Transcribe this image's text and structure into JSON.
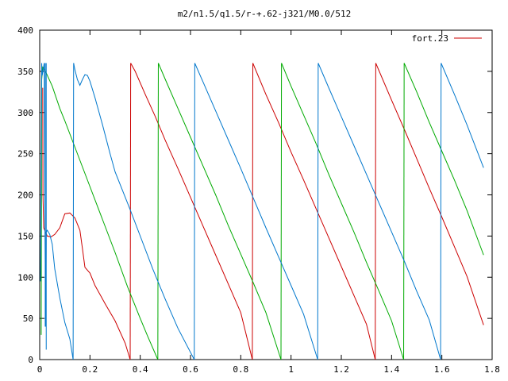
{
  "chart_data": {
    "type": "line",
    "title": "m2/n1.5/q1.5/r-+.62-j321/M0.0/512",
    "xlabel": "",
    "ylabel": "",
    "xlim": [
      0,
      1.8
    ],
    "ylim": [
      0,
      400
    ],
    "x_ticks": [
      "0",
      "0.2",
      "0.4",
      "0.6",
      "0.8",
      "1",
      "1.2",
      "1.4",
      "1.6",
      "1.8"
    ],
    "y_ticks": [
      "0",
      "50",
      "100",
      "150",
      "200",
      "250",
      "300",
      "350",
      "400"
    ],
    "grid": false,
    "legend": {
      "position": "top-right",
      "entries": [
        "fort.23"
      ]
    },
    "colors": {
      "red": "#cc0000",
      "green": "#00aa00",
      "blue": "#0077cc"
    },
    "series": [
      {
        "name": "fort.23",
        "color": "#cc0000",
        "segments": [
          [
            [
              0.012,
              330
            ],
            [
              0.013,
              200
            ],
            [
              0.016,
              160
            ],
            [
              0.02,
              157
            ],
            [
              0.03,
              150
            ],
            [
              0.045,
              149
            ],
            [
              0.06,
              152
            ],
            [
              0.08,
              160
            ],
            [
              0.1,
              177
            ],
            [
              0.12,
              178
            ],
            [
              0.14,
              172
            ],
            [
              0.16,
              157
            ],
            [
              0.17,
              135
            ],
            [
              0.18,
              112
            ],
            [
              0.2,
              105
            ],
            [
              0.22,
              90
            ],
            [
              0.26,
              68
            ],
            [
              0.3,
              47
            ],
            [
              0.34,
              20
            ],
            [
              0.36,
              0
            ]
          ],
          [
            [
              0.362,
              360
            ],
            [
              0.38,
              350
            ],
            [
              0.42,
              322
            ],
            [
              0.46,
              295
            ],
            [
              0.5,
              266
            ],
            [
              0.55,
              232
            ],
            [
              0.6,
              197
            ],
            [
              0.65,
              162
            ],
            [
              0.7,
              127
            ],
            [
              0.75,
              92
            ],
            [
              0.8,
              57
            ],
            [
              0.846,
              0
            ]
          ],
          [
            [
              0.848,
              360
            ],
            [
              0.9,
              322
            ],
            [
              0.95,
              288
            ],
            [
              1.0,
              252
            ],
            [
              1.05,
              218
            ],
            [
              1.1,
              183
            ],
            [
              1.15,
              148
            ],
            [
              1.2,
              113
            ],
            [
              1.25,
              78
            ],
            [
              1.3,
              43
            ],
            [
              1.335,
              0
            ]
          ],
          [
            [
              1.337,
              360
            ],
            [
              1.4,
              315
            ],
            [
              1.45,
              280
            ],
            [
              1.5,
              244
            ],
            [
              1.55,
              208
            ],
            [
              1.6,
              173
            ],
            [
              1.65,
              137
            ],
            [
              1.7,
              101
            ],
            [
              1.766,
              42
            ]
          ]
        ]
      },
      {
        "name": "",
        "color": "#00aa00",
        "segments": [
          [
            [
              0.006,
              30
            ],
            [
              0.008,
              340
            ],
            [
              0.012,
              355
            ],
            [
              0.02,
              352
            ],
            [
              0.05,
              332
            ],
            [
              0.08,
              305
            ],
            [
              0.1,
              290
            ],
            [
              0.15,
              250
            ],
            [
              0.2,
              210
            ],
            [
              0.25,
              170
            ],
            [
              0.3,
              130
            ],
            [
              0.35,
              88
            ],
            [
              0.4,
              50
            ],
            [
              0.43,
              28
            ],
            [
              0.47,
              0
            ]
          ],
          [
            [
              0.472,
              360
            ],
            [
              0.5,
              340
            ],
            [
              0.55,
              305
            ],
            [
              0.6,
              270
            ],
            [
              0.65,
              235
            ],
            [
              0.7,
              200
            ],
            [
              0.75,
              163
            ],
            [
              0.8,
              128
            ],
            [
              0.85,
              93
            ],
            [
              0.9,
              57
            ],
            [
              0.96,
              0
            ]
          ],
          [
            [
              0.962,
              360
            ],
            [
              1.0,
              332
            ],
            [
              1.05,
              297
            ],
            [
              1.1,
              262
            ],
            [
              1.15,
              225
            ],
            [
              1.2,
              190
            ],
            [
              1.25,
              155
            ],
            [
              1.3,
              118
            ],
            [
              1.35,
              83
            ],
            [
              1.4,
              47
            ],
            [
              1.448,
              0
            ]
          ],
          [
            [
              1.45,
              360
            ],
            [
              1.5,
              325
            ],
            [
              1.55,
              288
            ],
            [
              1.6,
              253
            ],
            [
              1.65,
              218
            ],
            [
              1.7,
              181
            ],
            [
              1.766,
              127
            ]
          ]
        ]
      },
      {
        "name": "",
        "color": "#0077cc",
        "segments": [
          [
            [
              0.003,
              95
            ],
            [
              0.006,
              270
            ],
            [
              0.008,
              360
            ],
            [
              0.01,
              345
            ],
            [
              0.014,
              352
            ],
            [
              0.018,
              360
            ],
            [
              0.021,
              160
            ],
            [
              0.024,
              40
            ],
            [
              0.026,
              155
            ],
            [
              0.03,
              157
            ],
            [
              0.04,
              152
            ],
            [
              0.05,
              140
            ],
            [
              0.06,
              110
            ],
            [
              0.08,
              75
            ],
            [
              0.1,
              45
            ],
            [
              0.12,
              25
            ],
            [
              0.133,
              0
            ]
          ],
          [
            [
              0.135,
              360
            ],
            [
              0.14,
              352
            ],
            [
              0.15,
              340
            ],
            [
              0.16,
              333
            ],
            [
              0.17,
              340
            ],
            [
              0.18,
              346
            ],
            [
              0.19,
              345
            ],
            [
              0.2,
              338
            ],
            [
              0.22,
              318
            ],
            [
              0.25,
              285
            ],
            [
              0.28,
              250
            ],
            [
              0.3,
              228
            ],
            [
              0.33,
              205
            ],
            [
              0.36,
              182
            ],
            [
              0.4,
              150
            ],
            [
              0.45,
              110
            ],
            [
              0.5,
              73
            ],
            [
              0.55,
              38
            ],
            [
              0.615,
              0
            ]
          ],
          [
            [
              0.617,
              360
            ],
            [
              0.65,
              337
            ],
            [
              0.7,
              302
            ],
            [
              0.75,
              267
            ],
            [
              0.8,
              232
            ],
            [
              0.85,
              196
            ],
            [
              0.9,
              160
            ],
            [
              0.95,
              125
            ],
            [
              1.0,
              90
            ],
            [
              1.05,
              55
            ],
            [
              1.106,
              0
            ]
          ],
          [
            [
              1.108,
              360
            ],
            [
              1.15,
              330
            ],
            [
              1.2,
              295
            ],
            [
              1.25,
              260
            ],
            [
              1.3,
              225
            ],
            [
              1.35,
              190
            ],
            [
              1.4,
              155
            ],
            [
              1.45,
              120
            ],
            [
              1.5,
              83
            ],
            [
              1.55,
              48
            ],
            [
              1.595,
              0
            ]
          ],
          [
            [
              1.597,
              360
            ],
            [
              1.65,
              322
            ],
            [
              1.7,
              285
            ],
            [
              1.766,
              233
            ]
          ]
        ]
      }
    ],
    "drops": [
      {
        "color": "#0077cc",
        "x": 0.026,
        "y_from": 360,
        "y_to": 12
      },
      {
        "color": "#0077cc",
        "x": 0.022,
        "y_from": 360,
        "y_to": 40
      }
    ]
  }
}
